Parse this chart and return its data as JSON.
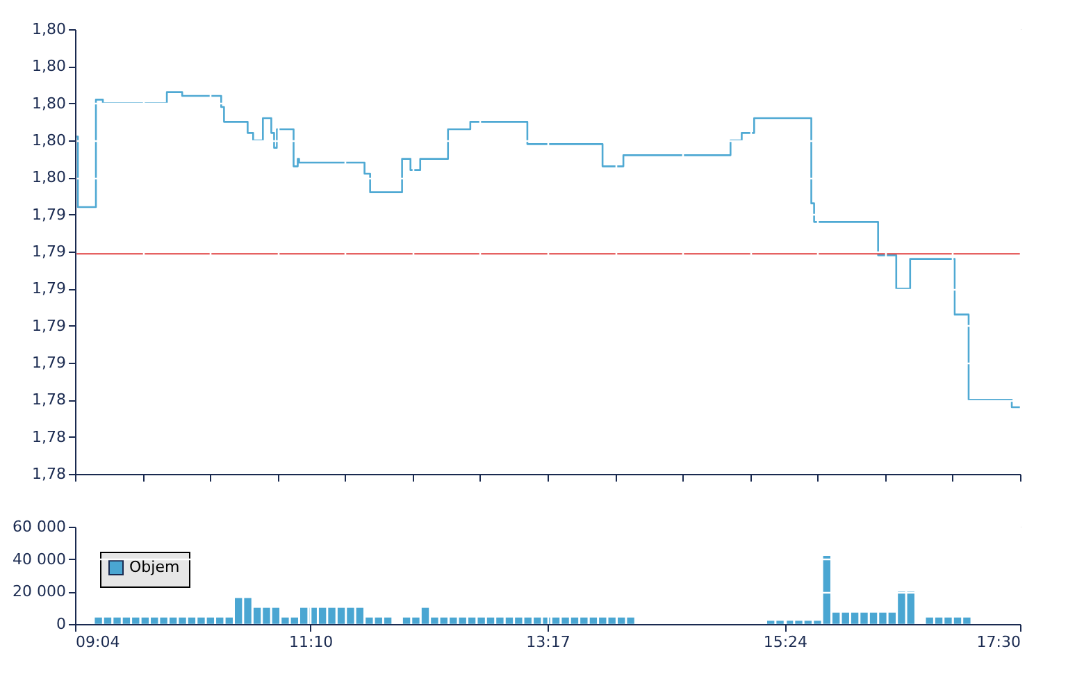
{
  "chart_data": [
    {
      "type": "step",
      "grid": true,
      "tick_labels": "y",
      "xlim": [
        9.0667,
        17.5
      ],
      "ylim": [
        1.78,
        1.804
      ],
      "xticks": [
        {
          "value": 9.0667,
          "label": null
        },
        {
          "value": 9.669,
          "label": null
        },
        {
          "value": 10.271,
          "label": null
        },
        {
          "value": 10.874,
          "label": null
        },
        {
          "value": 11.476,
          "label": null
        },
        {
          "value": 12.079,
          "label": null
        },
        {
          "value": 12.681,
          "label": null
        },
        {
          "value": 13.283,
          "label": null
        },
        {
          "value": 13.886,
          "label": null
        },
        {
          "value": 14.488,
          "label": null
        },
        {
          "value": 15.091,
          "label": null
        },
        {
          "value": 15.693,
          "label": null
        },
        {
          "value": 16.295,
          "label": null
        },
        {
          "value": 16.898,
          "label": null
        },
        {
          "value": 17.5,
          "label": null
        }
      ],
      "yticks": [
        {
          "value": 1.78,
          "label": "1,78"
        },
        {
          "value": 1.782,
          "label": "1,78"
        },
        {
          "value": 1.784,
          "label": "1,78"
        },
        {
          "value": 1.786,
          "label": "1,79"
        },
        {
          "value": 1.788,
          "label": "1,79"
        },
        {
          "value": 1.79,
          "label": "1,79"
        },
        {
          "value": 1.792,
          "label": "1,79"
        },
        {
          "value": 1.794,
          "label": "1,79"
        },
        {
          "value": 1.796,
          "label": "1,80"
        },
        {
          "value": 1.798,
          "label": "1,80"
        },
        {
          "value": 1.8,
          "label": "1,80"
        },
        {
          "value": 1.802,
          "label": "1,80"
        },
        {
          "value": 1.804,
          "label": "1,80"
        }
      ],
      "ref_lines": [
        {
          "axis": "y",
          "value": 1.7919,
          "color": "#e04040"
        }
      ],
      "series": [
        {
          "color": "#4fa9d3",
          "x": [
            9.067,
            9.092,
            9.253,
            9.315,
            9.886,
            10.023,
            10.371,
            10.396,
            10.607,
            10.656,
            10.743,
            10.818,
            10.843,
            10.868,
            11.017,
            11.054,
            11.066,
            11.65,
            11.7,
            11.985,
            12.06,
            12.147,
            12.395,
            12.594,
            13.103,
            13.774,
            13.96,
            14.916,
            15.016,
            15.127,
            15.637,
            15.662,
            16.233,
            16.395,
            16.519,
            16.916,
            17.041,
            17.426,
            17.5
          ],
          "values": [
            1.7982,
            1.7944,
            1.8002,
            1.8,
            1.8006,
            1.8004,
            1.7998,
            1.799,
            1.7984,
            1.798,
            1.7992,
            1.7984,
            1.7976,
            1.7986,
            1.7966,
            1.797,
            1.7968,
            1.7962,
            1.7952,
            1.797,
            1.7964,
            1.797,
            1.7986,
            1.799,
            1.7978,
            1.7966,
            1.7972,
            1.798,
            1.7984,
            1.7992,
            1.7946,
            1.7936,
            1.7918,
            1.79,
            1.7916,
            1.7886,
            1.784,
            1.7836,
            1.7836
          ]
        }
      ]
    },
    {
      "type": "bar",
      "grid": true,
      "legend": "top left",
      "xlim": [
        9.0667,
        17.5
      ],
      "ylim": [
        0,
        60000
      ],
      "xticks": [
        {
          "value": 9.0667,
          "label": "09:04"
        },
        {
          "value": 11.1667,
          "label": "11:10"
        },
        {
          "value": 13.2833,
          "label": "13:17"
        },
        {
          "value": 15.4,
          "label": "15:24"
        },
        {
          "value": 17.5,
          "label": "17:30"
        }
      ],
      "yticks": [
        0,
        {
          "value": 20000,
          "label": "20 000"
        },
        {
          "value": 40000,
          "label": "40 000"
        },
        {
          "value": 60000,
          "label": "60 000"
        }
      ],
      "series": [
        {
          "name": "Objem",
          "color": "#4aa6d2",
          "x": [
            9.275,
            9.358,
            9.442,
            9.525,
            9.608,
            9.692,
            9.775,
            9.858,
            9.942,
            10.025,
            10.108,
            10.192,
            10.275,
            10.358,
            10.442,
            10.525,
            10.608,
            10.692,
            10.775,
            10.858,
            10.942,
            11.025,
            11.108,
            11.192,
            11.275,
            11.358,
            11.442,
            11.525,
            11.608,
            11.692,
            11.775,
            11.858,
            12.025,
            12.108,
            12.192,
            12.275,
            12.358,
            12.442,
            12.525,
            12.608,
            12.692,
            12.775,
            12.858,
            12.942,
            13.025,
            13.108,
            13.192,
            13.275,
            13.358,
            13.442,
            13.525,
            13.608,
            13.692,
            13.775,
            13.858,
            13.942,
            14.025,
            15.275,
            15.358,
            15.442,
            15.525,
            15.608,
            15.692,
            15.775,
            15.858,
            15.942,
            16.025,
            16.108,
            16.192,
            16.275,
            16.358,
            16.442,
            16.525,
            16.692,
            16.775,
            16.858,
            16.942,
            17.025
          ],
          "values": [
            4000,
            4000,
            4000,
            4000,
            4000,
            4000,
            4000,
            4000,
            4000,
            4000,
            4000,
            4000,
            4000,
            4000,
            4000,
            16000,
            16000,
            10000,
            10000,
            10000,
            4000,
            4000,
            10000,
            10000,
            10000,
            10000,
            10000,
            10000,
            10000,
            4000,
            4000,
            4000,
            4000,
            4000,
            10000,
            4000,
            4000,
            4000,
            4000,
            4000,
            4000,
            4000,
            4000,
            4000,
            4000,
            4000,
            4000,
            4000,
            4000,
            4000,
            4000,
            4000,
            4000,
            4000,
            4000,
            4000,
            4000,
            2000,
            2000,
            2000,
            2000,
            2000,
            2000,
            42000,
            7000,
            7000,
            7000,
            7000,
            7000,
            7000,
            7000,
            20000,
            20000,
            4000,
            4000,
            4000,
            4000,
            4000
          ]
        }
      ]
    }
  ]
}
